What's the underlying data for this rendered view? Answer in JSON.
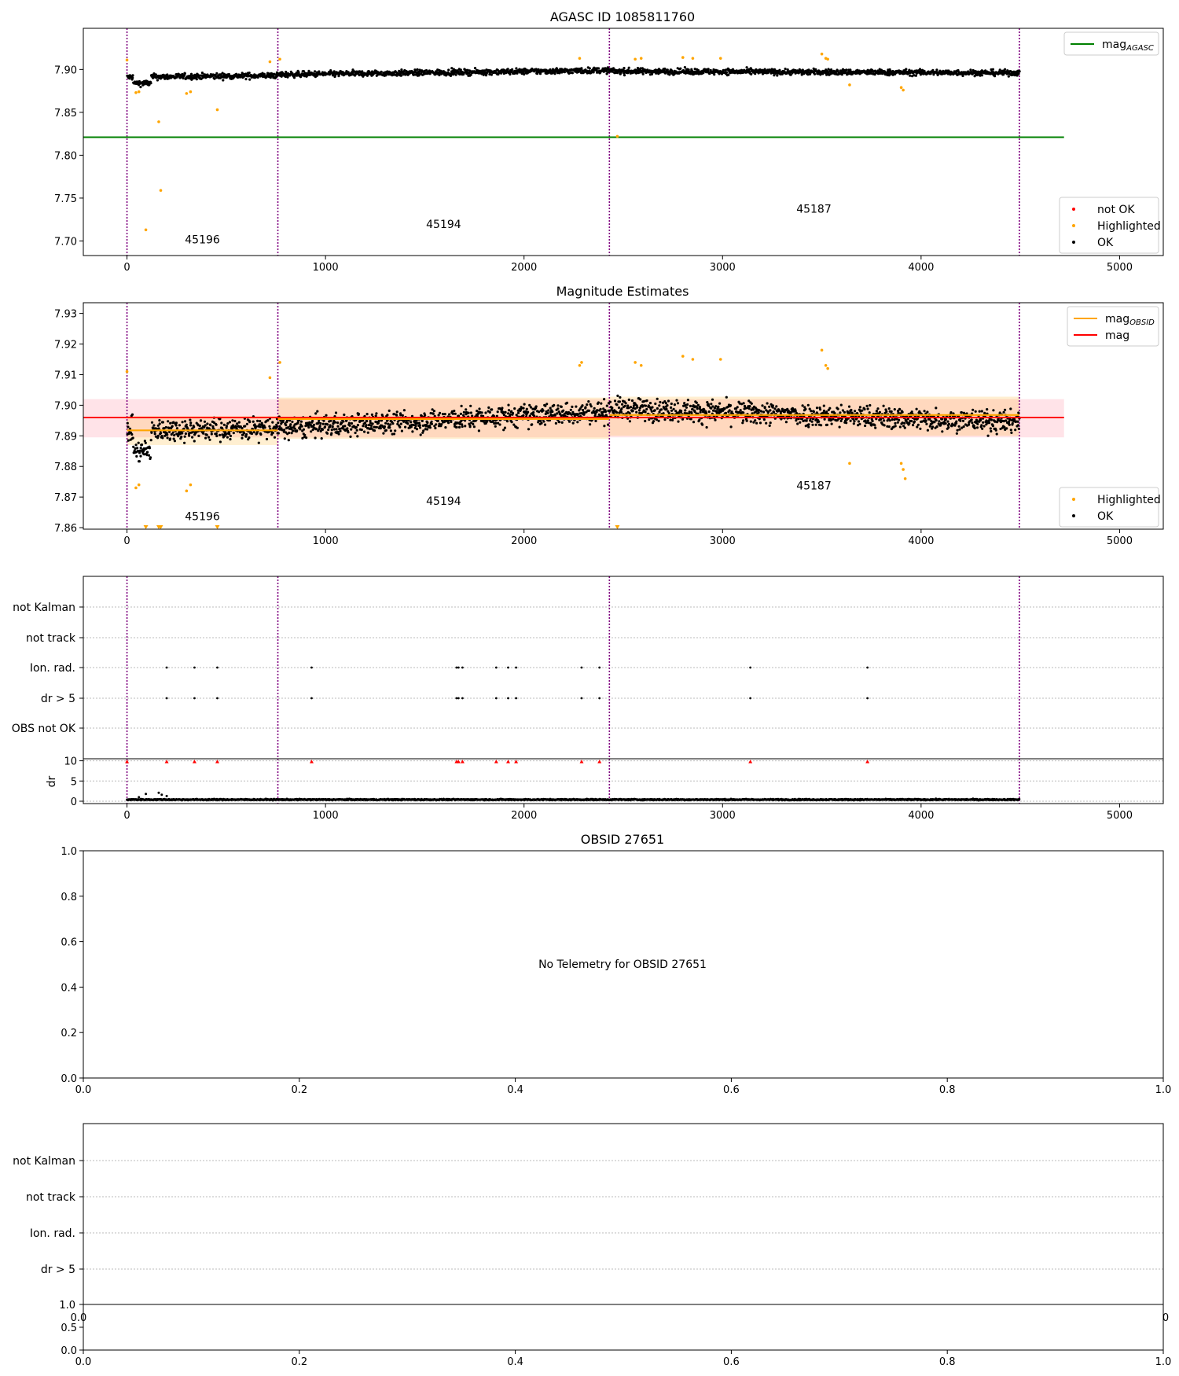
{
  "chart_data": [
    {
      "type": "scatter",
      "title": "AGASC ID 1085811760",
      "xlim": [
        -220,
        5220
      ],
      "ylim": [
        7.683,
        7.948
      ],
      "xticks": [
        0,
        1000,
        2000,
        3000,
        4000,
        5000
      ],
      "xtick_labels": [
        "0",
        "1000",
        "2000",
        "3000",
        "4000",
        "5000"
      ],
      "yticks": [
        7.7,
        7.75,
        7.8,
        7.85,
        7.9
      ],
      "ytick_labels": [
        "7.70",
        "7.75",
        "7.80",
        "7.85",
        "7.90"
      ],
      "vlines_x": [
        0,
        760,
        2430,
        4495
      ],
      "vline_color": "#800080",
      "obsid_labels": [
        {
          "text": "45196",
          "x": 380,
          "y": 7.697
        },
        {
          "text": "45194",
          "x": 1595,
          "y": 7.715
        },
        {
          "text": "45187",
          "x": 3460,
          "y": 7.733
        }
      ],
      "hline": {
        "name": "mag$_{AGASC}$",
        "value": 7.821,
        "xmax": 4720,
        "color": "#008000"
      },
      "legend_top": [
        {
          "label": "mag",
          "sub": "AGASC",
          "kind": "line",
          "color": "#008000"
        }
      ],
      "legend_bottom": [
        {
          "label": "not OK",
          "kind": "dot",
          "color": "#ff0000"
        },
        {
          "label": "Highlighted",
          "kind": "dot",
          "color": "#ffa500"
        },
        {
          "label": "OK",
          "kind": "dot",
          "color": "#000000"
        }
      ],
      "series": [
        {
          "name": "OK",
          "color": "#000000",
          "x_range": [
            0,
            4495
          ],
          "segments": [
            {
              "x0": 0,
              "x1": 760,
              "y0": 7.891,
              "y1": 7.893,
              "noise": 0.006,
              "dip": [
                30,
                120,
                7.884
              ]
            },
            {
              "x0": 760,
              "x1": 2430,
              "y0": 7.894,
              "y1": 7.899,
              "noise": 0.006
            },
            {
              "x0": 2430,
              "x1": 4495,
              "y0": 7.898,
              "y1": 7.896,
              "noise": 0.006
            }
          ]
        },
        {
          "name": "Highlighted",
          "color": "#ffa500",
          "points": [
            [
              0,
              7.911
            ],
            [
              45,
              7.873
            ],
            [
              60,
              7.874
            ],
            [
              95,
              7.713
            ],
            [
              160,
              7.839
            ],
            [
              170,
              7.759
            ],
            [
              300,
              7.872
            ],
            [
              320,
              7.874
            ],
            [
              455,
              7.853
            ],
            [
              720,
              7.909
            ],
            [
              770,
              7.912
            ],
            [
              2280,
              7.913
            ],
            [
              2470,
              7.822
            ],
            [
              2560,
              7.912
            ],
            [
              2590,
              7.913
            ],
            [
              2800,
              7.914
            ],
            [
              2850,
              7.913
            ],
            [
              2990,
              7.913
            ],
            [
              3500,
              7.918
            ],
            [
              3520,
              7.913
            ],
            [
              3530,
              7.912
            ],
            [
              3640,
              7.882
            ],
            [
              3900,
              7.879
            ],
            [
              3910,
              7.876
            ]
          ]
        }
      ]
    },
    {
      "type": "scatter",
      "title": "Magnitude Estimates",
      "xlim": [
        -220,
        5220
      ],
      "ylim": [
        7.8595,
        7.9335
      ],
      "xticks": [
        0,
        1000,
        2000,
        3000,
        4000,
        5000
      ],
      "xtick_labels": [
        "0",
        "1000",
        "2000",
        "3000",
        "4000",
        "5000"
      ],
      "yticks": [
        7.86,
        7.87,
        7.88,
        7.89,
        7.9,
        7.91,
        7.92,
        7.93
      ],
      "ytick_labels": [
        "7.86",
        "7.87",
        "7.88",
        "7.89",
        "7.90",
        "7.91",
        "7.92",
        "7.93"
      ],
      "vlines_x": [
        0,
        760,
        2430,
        4495
      ],
      "obsid_labels": [
        {
          "text": "45196",
          "x": 380,
          "y": 7.8625
        },
        {
          "text": "45194",
          "x": 1595,
          "y": 7.8675
        },
        {
          "text": "45187",
          "x": 3460,
          "y": 7.8725
        }
      ],
      "mag": {
        "value": 7.896,
        "band": [
          7.8895,
          7.902
        ],
        "xmax": 4720,
        "color": "#ff0000",
        "band_color": "#ffc0cb"
      },
      "mag_obsid": [
        {
          "x0": 0,
          "x1": 760,
          "value": 7.8918,
          "band": [
            7.887,
            7.8965
          ]
        },
        {
          "x0": 760,
          "x1": 2430,
          "value": 7.8955,
          "band": [
            7.889,
            7.9025
          ]
        },
        {
          "x0": 2430,
          "x1": 4495,
          "value": 7.8968,
          "band": [
            7.89,
            7.9028
          ]
        }
      ],
      "mag_obsid_color": "#ffa500",
      "legend_top": [
        {
          "label": "mag",
          "sub": "OBSID",
          "kind": "line",
          "color": "#ffa500"
        },
        {
          "label": "mag",
          "sub": "",
          "kind": "line",
          "color": "#ff0000"
        }
      ],
      "legend_bottom": [
        {
          "label": "Highlighted",
          "kind": "dot",
          "color": "#ffa500"
        },
        {
          "label": "OK",
          "kind": "dot",
          "color": "#000000"
        }
      ],
      "series": [
        {
          "name": "OK",
          "color": "#000000",
          "segments": [
            {
              "x0": 0,
              "x1": 760,
              "y0": 7.8918,
              "y1": 7.8925,
              "noise": 0.0065,
              "dip": [
                30,
                120,
                7.885
              ]
            },
            {
              "x0": 760,
              "x1": 2430,
              "y0": 7.8925,
              "y1": 7.898,
              "noise": 0.0065
            },
            {
              "x0": 2430,
              "x1": 4495,
              "y0": 7.899,
              "y1": 7.8945,
              "noise": 0.0065
            }
          ]
        },
        {
          "name": "Highlighted",
          "color": "#ffa500",
          "points": [
            [
              0,
              7.911
            ],
            [
              45,
              7.873
            ],
            [
              60,
              7.874
            ],
            [
              300,
              7.872
            ],
            [
              320,
              7.874
            ],
            [
              720,
              7.909
            ],
            [
              770,
              7.914
            ],
            [
              2280,
              7.913
            ],
            [
              2290,
              7.914
            ],
            [
              2560,
              7.914
            ],
            [
              2590,
              7.913
            ],
            [
              2800,
              7.916
            ],
            [
              2850,
              7.915
            ],
            [
              2990,
              7.915
            ],
            [
              3500,
              7.918
            ],
            [
              3520,
              7.913
            ],
            [
              3530,
              7.912
            ],
            [
              3640,
              7.881
            ],
            [
              3900,
              7.881
            ],
            [
              3910,
              7.879
            ],
            [
              3920,
              7.876
            ]
          ]
        },
        {
          "name": "Highlighted (off-scale)",
          "color": "#ffa500",
          "marker": "triangle-down",
          "x": [
            95,
            160,
            170,
            455,
            2470
          ]
        }
      ]
    },
    {
      "type": "scatter",
      "title": "",
      "xlim": [
        -220,
        5220
      ],
      "categories": [
        "not Kalman",
        "not track",
        "Ion. rad.",
        "dr > 5",
        "OBS not OK"
      ],
      "vlines_x": [
        0,
        760,
        2430,
        4495
      ],
      "flag_events": {
        "Ion. rad.": [
          200,
          340,
          455,
          930,
          1660,
          1670,
          1690,
          1860,
          1920,
          1960,
          2290,
          2380,
          3140,
          3730
        ],
        "dr > 5": [
          200,
          340,
          455,
          930,
          1660,
          1670,
          1690,
          1860,
          1920,
          1960,
          2290,
          2380,
          3140,
          3730
        ]
      },
      "dr_panel": {
        "ylabel": "dr",
        "ylim": [
          0,
          10.5
        ],
        "yticks": [
          0,
          5,
          10
        ],
        "ytick_labels": [
          "0",
          "5",
          "10"
        ],
        "baseline": 0.4,
        "spikes": [
          [
            60,
            1.0
          ],
          [
            95,
            1.8
          ],
          [
            160,
            2.1
          ],
          [
            175,
            1.6
          ],
          [
            200,
            1.3
          ]
        ],
        "clipped_x": [
          0,
          200,
          340,
          455,
          930,
          1660,
          1670,
          1690,
          1860,
          1920,
          1960,
          2290,
          2380,
          3140,
          3730
        ],
        "clipped_color": "#ff0000"
      },
      "xticks": [
        0,
        1000,
        2000,
        3000,
        4000,
        5000
      ],
      "xtick_labels": [
        "0",
        "1000",
        "2000",
        "3000",
        "4000",
        "5000"
      ]
    },
    {
      "type": "scatter",
      "title": "OBSID 27651",
      "message": "No Telemetry for OBSID 27651",
      "xlim": [
        0,
        1
      ],
      "ylim": [
        0,
        1
      ],
      "xticks": [
        0,
        0.2,
        0.4,
        0.6,
        0.8,
        1.0
      ],
      "xtick_labels": [
        "0.0",
        "0.2",
        "0.4",
        "0.6",
        "0.8",
        "1.0"
      ],
      "yticks": [
        0,
        0.2,
        0.4,
        0.6,
        0.8,
        1.0
      ],
      "ytick_labels": [
        "0.0",
        "0.2",
        "0.4",
        "0.6",
        "0.8",
        "1.0"
      ]
    },
    {
      "type": "scatter",
      "title": "",
      "categories": [
        "not Kalman",
        "not track",
        "Ion. rad.",
        "dr > 5"
      ],
      "overlap_labels": {
        "top_tick": "1.0",
        "left": "0.0",
        "right": "0"
      },
      "lower": {
        "xlim": [
          0,
          1
        ],
        "ylim": [
          0,
          1
        ],
        "yticks": [
          0,
          0.5,
          1.0
        ],
        "ytick_labels": [
          "0.0",
          "0.5",
          "1.0"
        ],
        "xticks": [
          0,
          0.2,
          0.4,
          0.6,
          0.8,
          1.0
        ],
        "xtick_labels": [
          "0.0",
          "0.2",
          "0.4",
          "0.6",
          "0.8",
          "1.0"
        ]
      }
    }
  ]
}
